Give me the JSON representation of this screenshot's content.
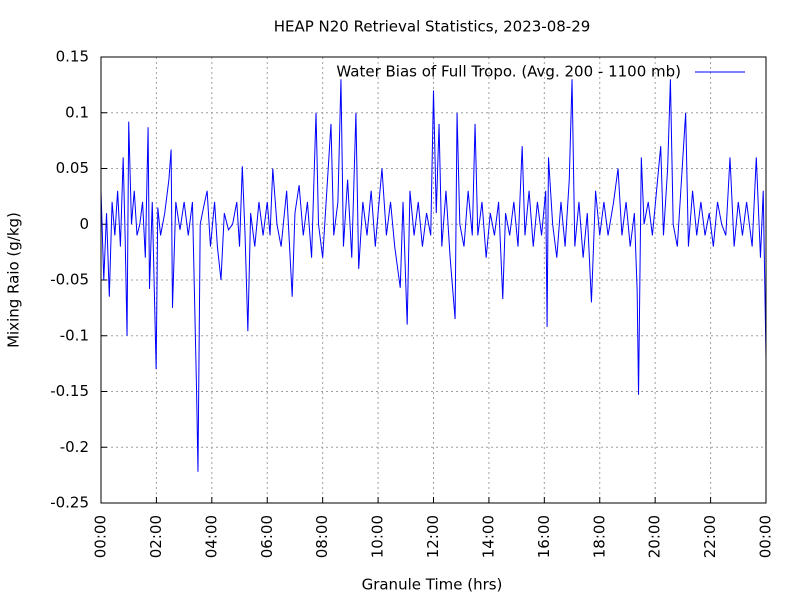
{
  "chart_data": {
    "type": "line",
    "title": "HEAP N20 Retrieval Statistics, 2023-08-29",
    "x_label": "Granule Time (hrs)",
    "y_label": "Mixing Raio (g/kg)",
    "xlim": [
      0,
      24
    ],
    "xticks": [
      {
        "value": 0,
        "label": "00:00"
      },
      {
        "value": 2,
        "label": "02:00"
      },
      {
        "value": 4,
        "label": "04:00"
      },
      {
        "value": 6,
        "label": "06:00"
      },
      {
        "value": 8,
        "label": "08:00"
      },
      {
        "value": 10,
        "label": "10:00"
      },
      {
        "value": 12,
        "label": "12:00"
      },
      {
        "value": 14,
        "label": "14:00"
      },
      {
        "value": 16,
        "label": "16:00"
      },
      {
        "value": 18,
        "label": "18:00"
      },
      {
        "value": 20,
        "label": "20:00"
      },
      {
        "value": 22,
        "label": "22:00"
      },
      {
        "value": 24,
        "label": "00:00"
      }
    ],
    "ylim": [
      -0.25,
      0.15
    ],
    "yticks": [
      -0.25,
      -0.2,
      -0.15,
      -0.1,
      -0.05,
      0,
      0.05,
      0.1,
      0.15
    ],
    "grid": true,
    "legend": "top-right",
    "x": [
      0,
      0.1,
      0.2,
      0.3,
      0.4,
      0.5,
      0.6,
      0.7,
      0.8,
      0.87,
      0.94,
      1.0,
      1.1,
      1.2,
      1.3,
      1.4,
      1.5,
      1.6,
      1.7,
      1.75,
      1.85,
      1.99,
      2.05,
      2.15,
      2.3,
      2.45,
      2.53,
      2.58,
      2.7,
      2.85,
      3.0,
      3.15,
      3.3,
      3.45,
      3.5,
      3.58,
      3.7,
      3.83,
      3.95,
      4.1,
      4.2,
      4.33,
      4.45,
      4.6,
      4.75,
      4.9,
      5.0,
      5.1,
      5.2,
      5.3,
      5.4,
      5.55,
      5.7,
      5.85,
      6.0,
      6.1,
      6.2,
      6.35,
      6.5,
      6.7,
      6.9,
      7.0,
      7.15,
      7.3,
      7.45,
      7.6,
      7.76,
      7.85,
      8.0,
      8.15,
      8.3,
      8.4,
      8.55,
      8.66,
      8.75,
      8.9,
      9.05,
      9.2,
      9.3,
      9.45,
      9.6,
      9.75,
      9.9,
      10.0,
      10.14,
      10.3,
      10.45,
      10.6,
      10.8,
      10.9,
      11.05,
      11.15,
      11.3,
      11.45,
      11.6,
      11.75,
      11.9,
      12.0,
      12.1,
      12.2,
      12.3,
      12.45,
      12.6,
      12.78,
      12.85,
      12.95,
      13.1,
      13.25,
      13.4,
      13.5,
      13.6,
      13.75,
      13.9,
      14.05,
      14.2,
      14.35,
      14.5,
      14.6,
      14.75,
      14.9,
      15.05,
      15.2,
      15.3,
      15.45,
      15.6,
      15.75,
      15.9,
      16.05,
      16.1,
      16.15,
      16.3,
      16.45,
      16.6,
      16.75,
      16.9,
      17.0,
      17.1,
      17.25,
      17.4,
      17.55,
      17.7,
      17.85,
      18.0,
      18.15,
      18.3,
      18.5,
      18.66,
      18.8,
      18.95,
      19.1,
      19.25,
      19.35,
      19.4,
      19.5,
      19.6,
      19.75,
      19.9,
      20.05,
      20.2,
      20.3,
      20.45,
      20.55,
      20.65,
      20.8,
      20.95,
      21.1,
      21.2,
      21.35,
      21.5,
      21.65,
      21.8,
      21.95,
      22.1,
      22.25,
      22.4,
      22.55,
      22.7,
      22.85,
      23.0,
      23.15,
      23.3,
      23.5,
      23.65,
      23.8,
      23.9,
      24.0
    ],
    "series": [
      {
        "name": "Water Bias of Full Tropo. (Avg. 200 - 1100 mb)",
        "color": "#0000ff",
        "values": [
          0.03,
          -0.05,
          0.01,
          -0.065,
          0.02,
          -0.01,
          0.03,
          -0.02,
          0.06,
          -0.01,
          -0.1,
          0.092,
          0.0,
          0.03,
          -0.01,
          0.0,
          0.02,
          -0.03,
          0.087,
          -0.058,
          0.02,
          -0.13,
          0.015,
          -0.01,
          0.01,
          0.04,
          0.067,
          -0.075,
          0.02,
          -0.005,
          0.02,
          -0.01,
          0.02,
          -0.15,
          -0.222,
          0.0,
          0.015,
          0.03,
          -0.02,
          0.02,
          -0.02,
          -0.05,
          0.01,
          -0.005,
          0.0,
          0.02,
          -0.02,
          0.052,
          -0.01,
          -0.096,
          0.01,
          -0.02,
          0.02,
          -0.01,
          0.02,
          -0.01,
          0.05,
          0.0,
          -0.02,
          0.03,
          -0.065,
          0.01,
          0.035,
          -0.01,
          0.02,
          -0.03,
          0.1,
          0.0,
          -0.03,
          0.03,
          0.09,
          -0.01,
          0.02,
          0.13,
          -0.02,
          0.04,
          -0.03,
          0.1,
          -0.04,
          0.02,
          -0.01,
          0.03,
          -0.02,
          0.01,
          0.05,
          -0.01,
          0.02,
          -0.02,
          -0.057,
          0.02,
          -0.09,
          0.03,
          -0.01,
          0.02,
          -0.02,
          0.01,
          -0.01,
          0.12,
          0.01,
          0.09,
          -0.02,
          0.03,
          -0.03,
          -0.085,
          0.1,
          0.0,
          -0.02,
          0.03,
          -0.01,
          0.09,
          -0.01,
          0.02,
          -0.03,
          0.01,
          -0.01,
          0.02,
          -0.067,
          0.01,
          -0.01,
          0.02,
          -0.02,
          0.07,
          -0.01,
          0.03,
          -0.02,
          0.02,
          -0.01,
          0.03,
          -0.092,
          0.06,
          0.0,
          -0.03,
          0.02,
          -0.02,
          0.04,
          0.13,
          -0.02,
          0.02,
          -0.03,
          0.01,
          -0.07,
          0.03,
          -0.01,
          0.02,
          -0.01,
          0.02,
          0.05,
          -0.01,
          0.02,
          -0.02,
          0.01,
          -0.06,
          -0.153,
          0.06,
          0.0,
          0.02,
          -0.01,
          0.03,
          0.07,
          -0.01,
          0.05,
          0.13,
          0.0,
          -0.02,
          0.04,
          0.1,
          -0.02,
          0.03,
          -0.01,
          0.02,
          -0.01,
          0.01,
          -0.02,
          0.02,
          0.0,
          -0.01,
          0.06,
          -0.02,
          0.02,
          -0.01,
          0.02,
          -0.02,
          0.06,
          -0.03,
          0.03,
          -0.12
        ]
      }
    ]
  }
}
